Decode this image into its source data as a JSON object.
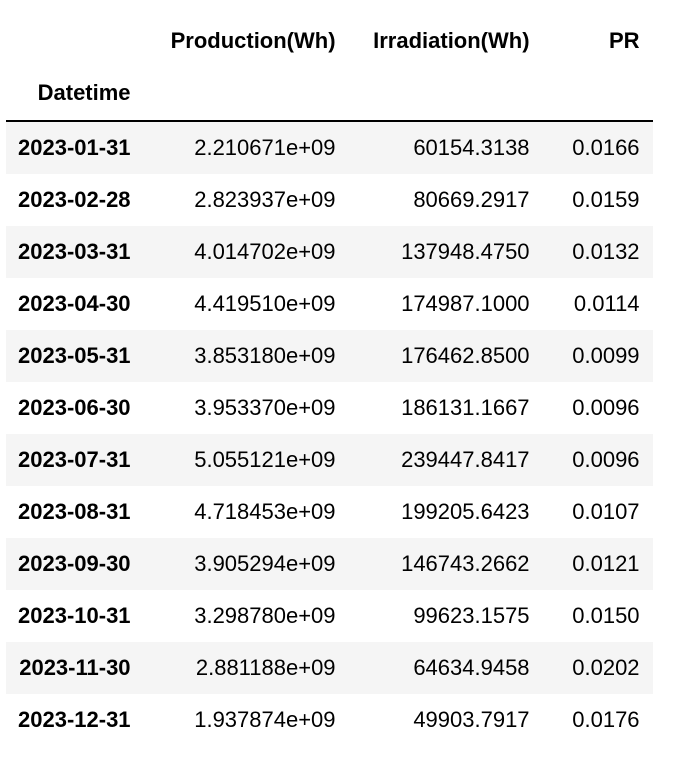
{
  "table": {
    "columns": [
      "Production(Wh)",
      "Irradiation(Wh)",
      "PR"
    ],
    "index_name": "Datetime",
    "rows": [
      {
        "date": "2023-01-31",
        "production": "2.210671e+09",
        "irradiation": "60154.3138",
        "pr": "0.0166"
      },
      {
        "date": "2023-02-28",
        "production": "2.823937e+09",
        "irradiation": "80669.2917",
        "pr": "0.0159"
      },
      {
        "date": "2023-03-31",
        "production": "4.014702e+09",
        "irradiation": "137948.4750",
        "pr": "0.0132"
      },
      {
        "date": "2023-04-30",
        "production": "4.419510e+09",
        "irradiation": "174987.1000",
        "pr": "0.0114"
      },
      {
        "date": "2023-05-31",
        "production": "3.853180e+09",
        "irradiation": "176462.8500",
        "pr": "0.0099"
      },
      {
        "date": "2023-06-30",
        "production": "3.953370e+09",
        "irradiation": "186131.1667",
        "pr": "0.0096"
      },
      {
        "date": "2023-07-31",
        "production": "5.055121e+09",
        "irradiation": "239447.8417",
        "pr": "0.0096"
      },
      {
        "date": "2023-08-31",
        "production": "4.718453e+09",
        "irradiation": "199205.6423",
        "pr": "0.0107"
      },
      {
        "date": "2023-09-30",
        "production": "3.905294e+09",
        "irradiation": "146743.2662",
        "pr": "0.0121"
      },
      {
        "date": "2023-10-31",
        "production": "3.298780e+09",
        "irradiation": "99623.1575",
        "pr": "0.0150"
      },
      {
        "date": "2023-11-30",
        "production": "2.881188e+09",
        "irradiation": "64634.9458",
        "pr": "0.0202"
      },
      {
        "date": "2023-12-31",
        "production": "1.937874e+09",
        "irradiation": "49903.7917",
        "pr": "0.0176"
      }
    ]
  }
}
